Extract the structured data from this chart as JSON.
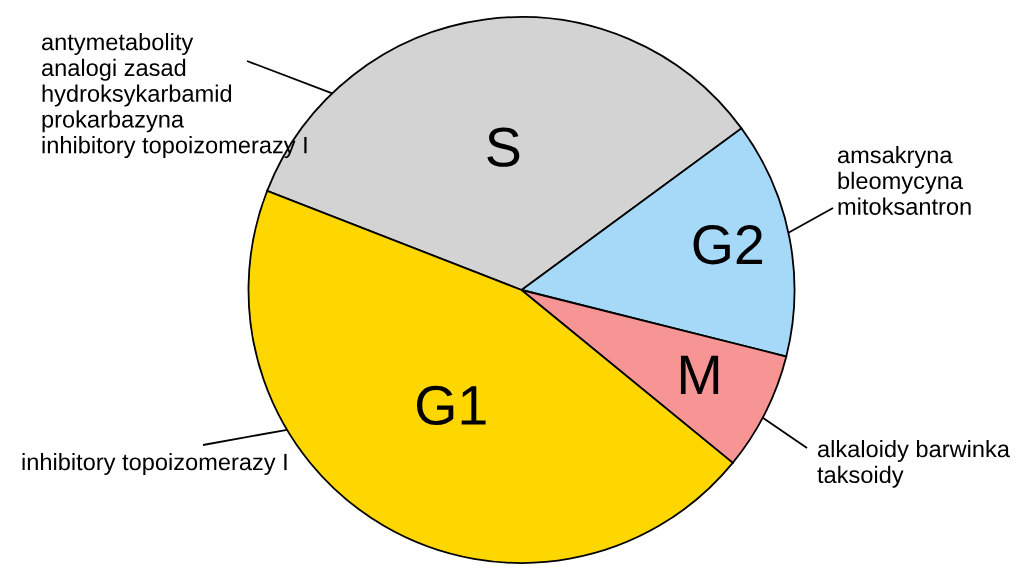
{
  "chart_data": {
    "type": "pie",
    "categories": [
      "S",
      "G2",
      "M",
      "G1"
    ],
    "values": [
      34,
      14,
      7,
      45
    ],
    "colors": [
      "#d3d3d3",
      "#a6d8f8",
      "#f79595",
      "#ffd700"
    ],
    "annotations": [
      "antymetabolity\nanalogi zasad\nhydroksykarbamid\nprokarbazyna\ninhibitory topoizomerazy I",
      "amsakryna\nbleomycyna\nmitoksantron",
      "alkaloidy barwinka\ntaksoidy",
      "inhibitory topoizomerazy I"
    ]
  }
}
